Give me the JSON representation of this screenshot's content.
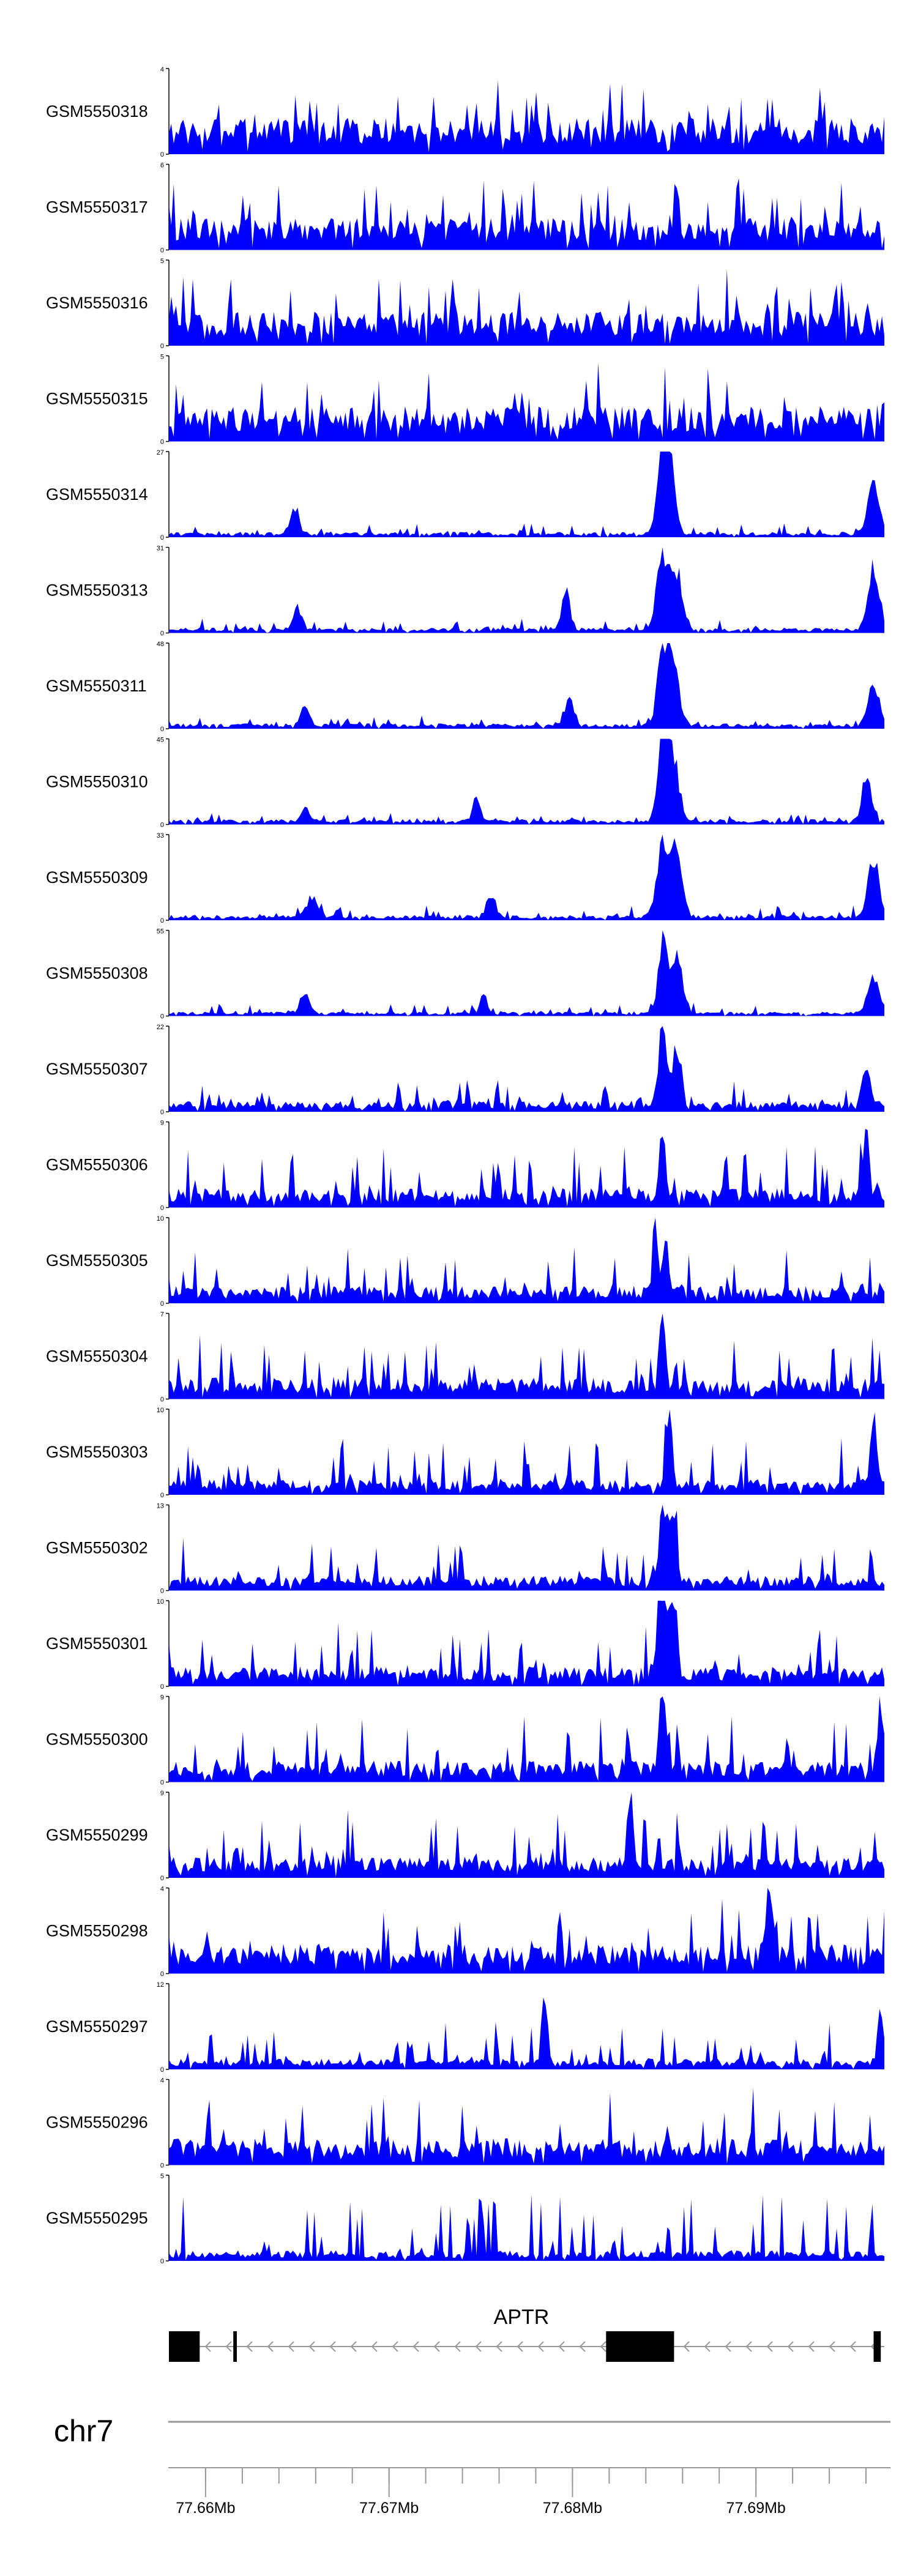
{
  "chart_data": {
    "type": "area",
    "title": "",
    "fill_color": "#0000ff",
    "tracks": [
      {
        "name": "GSM5550318",
        "ymax": "4",
        "ymin": "0",
        "peaks": [],
        "seed": 318,
        "noise": 0.55,
        "base": 0.34
      },
      {
        "name": "GSM5550317",
        "ymax": "6",
        "ymin": "0",
        "peaks": [],
        "seed": 317,
        "noise": 0.55,
        "base": 0.3
      },
      {
        "name": "GSM5550316",
        "ymax": "5",
        "ymin": "0",
        "peaks": [],
        "seed": 316,
        "noise": 0.6,
        "base": 0.32
      },
      {
        "name": "GSM5550315",
        "ymax": "5",
        "ymin": "0",
        "peaks": [],
        "seed": 315,
        "noise": 0.62,
        "base": 0.33
      },
      {
        "name": "GSM5550314",
        "ymax": "27",
        "ymin": "0",
        "peaks": [
          [
            0.175,
            0.32,
            0.006
          ],
          [
            0.695,
            0.55,
            0.01
          ],
          [
            0.69,
            0.95,
            0.006
          ],
          [
            0.7,
            0.8,
            0.006
          ],
          [
            0.985,
            0.65,
            0.008
          ]
        ],
        "seed": 314,
        "noise": 0.12,
        "base": 0.05
      },
      {
        "name": "GSM5550313",
        "ymax": "31",
        "ymin": "0",
        "peaks": [
          [
            0.18,
            0.28,
            0.006
          ],
          [
            0.555,
            0.45,
            0.006
          ],
          [
            0.69,
            0.95,
            0.008
          ],
          [
            0.71,
            0.7,
            0.008
          ],
          [
            0.985,
            0.75,
            0.008
          ]
        ],
        "seed": 313,
        "noise": 0.12,
        "base": 0.05
      },
      {
        "name": "GSM5550311",
        "ymax": "48",
        "ymin": "0",
        "peaks": [
          [
            0.19,
            0.25,
            0.006
          ],
          [
            0.56,
            0.35,
            0.006
          ],
          [
            0.69,
            0.98,
            0.007
          ],
          [
            0.705,
            0.75,
            0.008
          ],
          [
            0.985,
            0.5,
            0.008
          ]
        ],
        "seed": 311,
        "noise": 0.1,
        "base": 0.05
      },
      {
        "name": "GSM5550310",
        "ymax": "45",
        "ymin": "0",
        "peaks": [
          [
            0.19,
            0.2,
            0.006
          ],
          [
            0.43,
            0.3,
            0.005
          ],
          [
            0.69,
            0.95,
            0.007
          ],
          [
            0.705,
            0.8,
            0.008
          ],
          [
            0.975,
            0.6,
            0.006
          ]
        ],
        "seed": 310,
        "noise": 0.1,
        "base": 0.05
      },
      {
        "name": "GSM5550309",
        "ymax": "33",
        "ymin": "0",
        "peaks": [
          [
            0.2,
            0.25,
            0.008
          ],
          [
            0.45,
            0.3,
            0.006
          ],
          [
            0.69,
            0.95,
            0.008
          ],
          [
            0.71,
            0.85,
            0.008
          ],
          [
            0.985,
            0.7,
            0.008
          ]
        ],
        "seed": 309,
        "noise": 0.12,
        "base": 0.05
      },
      {
        "name": "GSM5550308",
        "ymax": "55",
        "ymin": "0",
        "peaks": [
          [
            0.19,
            0.28,
            0.007
          ],
          [
            0.44,
            0.25,
            0.005
          ],
          [
            0.69,
            0.95,
            0.006
          ],
          [
            0.71,
            0.7,
            0.008
          ],
          [
            0.985,
            0.45,
            0.008
          ]
        ],
        "seed": 308,
        "noise": 0.1,
        "base": 0.04
      },
      {
        "name": "GSM5550307",
        "ymax": "22",
        "ymin": "0",
        "peaks": [
          [
            0.69,
            0.95,
            0.006
          ],
          [
            0.71,
            0.8,
            0.006
          ],
          [
            0.975,
            0.45,
            0.006
          ]
        ],
        "seed": 307,
        "noise": 0.3,
        "base": 0.1
      },
      {
        "name": "GSM5550306",
        "ymax": "9",
        "ymin": "0",
        "peaks": [
          [
            0.69,
            0.95,
            0.004
          ],
          [
            0.975,
            0.85,
            0.004
          ]
        ],
        "seed": 306,
        "noise": 0.55,
        "base": 0.18
      },
      {
        "name": "GSM5550305",
        "ymax": "10",
        "ymin": "0",
        "peaks": [
          [
            0.68,
            0.95,
            0.004
          ],
          [
            0.695,
            0.7,
            0.004
          ]
        ],
        "seed": 305,
        "noise": 0.5,
        "base": 0.16
      },
      {
        "name": "GSM5550304",
        "ymax": "7",
        "ymin": "0",
        "peaks": [
          [
            0.69,
            0.95,
            0.004
          ]
        ],
        "seed": 304,
        "noise": 0.62,
        "base": 0.2
      },
      {
        "name": "GSM5550303",
        "ymax": "10",
        "ymin": "0",
        "peaks": [
          [
            0.7,
            0.9,
            0.004
          ],
          [
            0.985,
            0.95,
            0.004
          ]
        ],
        "seed": 303,
        "noise": 0.5,
        "base": 0.15
      },
      {
        "name": "GSM5550302",
        "ymax": "13",
        "ymin": "0",
        "peaks": [
          [
            0.69,
            0.95,
            0.005
          ],
          [
            0.705,
            0.8,
            0.005
          ]
        ],
        "seed": 302,
        "noise": 0.45,
        "base": 0.14
      },
      {
        "name": "GSM5550301",
        "ymax": "10",
        "ymin": "0",
        "peaks": [
          [
            0.69,
            0.95,
            0.007
          ],
          [
            0.705,
            0.8,
            0.006
          ]
        ],
        "seed": 301,
        "noise": 0.55,
        "base": 0.18
      },
      {
        "name": "GSM5550300",
        "ymax": "9",
        "ymin": "0",
        "peaks": [
          [
            0.69,
            0.95,
            0.005
          ],
          [
            0.995,
            0.9,
            0.004
          ]
        ],
        "seed": 300,
        "noise": 0.6,
        "base": 0.2
      },
      {
        "name": "GSM5550299",
        "ymax": "9",
        "ymin": "0",
        "peaks": [
          [
            0.645,
            0.95,
            0.004
          ]
        ],
        "seed": 299,
        "noise": 0.6,
        "base": 0.2
      },
      {
        "name": "GSM5550298",
        "ymax": "4",
        "ymin": "0",
        "peaks": [
          [
            0.84,
            0.9,
            0.004
          ]
        ],
        "seed": 298,
        "noise": 0.6,
        "base": 0.28
      },
      {
        "name": "GSM5550297",
        "ymax": "12",
        "ymin": "0",
        "peaks": [
          [
            0.525,
            0.95,
            0.004
          ],
          [
            0.995,
            0.8,
            0.004
          ]
        ],
        "seed": 297,
        "noise": 0.45,
        "base": 0.1
      },
      {
        "name": "GSM5550296",
        "ymax": "4",
        "ymin": "0",
        "peaks": [],
        "seed": 296,
        "noise": 0.65,
        "base": 0.25
      },
      {
        "name": "GSM5550295",
        "ymax": "5",
        "ymin": "0",
        "peaks": [],
        "seed": 295,
        "noise": 0.68,
        "base": 0.1
      }
    ],
    "gene": {
      "name": "APTR",
      "strand": "-",
      "exons": [
        [
          0.0,
          0.043
        ],
        [
          0.09,
          0.095
        ],
        [
          0.611,
          0.706
        ],
        [
          0.985,
          0.995
        ]
      ]
    },
    "chromosome": "chr7",
    "x_axis": {
      "range_mb": [
        77.658,
        77.697
      ],
      "major_ticks_mb": [
        77.66,
        77.67,
        77.68,
        77.69
      ],
      "major_tick_labels": [
        "77.66Mb",
        "77.67Mb",
        "77.68Mb",
        "77.69Mb"
      ],
      "minor_step_mb": 0.002
    }
  }
}
